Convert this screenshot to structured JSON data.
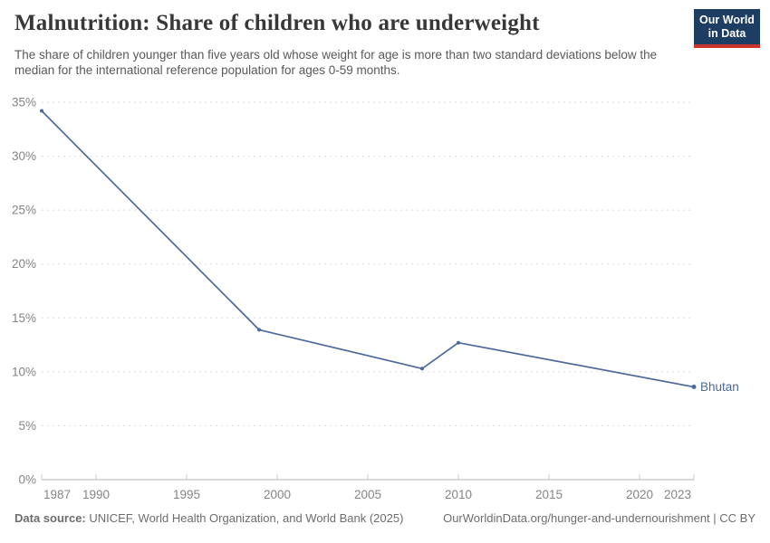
{
  "chart_data": {
    "type": "line",
    "title": "Malnutrition: Share of children who are underweight",
    "subtitle": "The share of children younger than five years old whose weight for age is more than two standard deviations below the median for the international reference population for ages 0-59 months.",
    "x_axis": {
      "min": 1987,
      "max": 2023,
      "ticks": [
        1987,
        1990,
        1995,
        2000,
        2005,
        2010,
        2015,
        2020,
        2023
      ]
    },
    "y_axis": {
      "min": 0,
      "max": 35,
      "unit": "%",
      "ticks": [
        0,
        5,
        10,
        15,
        20,
        25,
        30,
        35
      ]
    },
    "grid": "horizontal-dashed",
    "legend": "series-end-label",
    "series": [
      {
        "name": "Bhutan",
        "color": "#4C6A9C",
        "points": [
          [
            1987,
            34.2
          ],
          [
            1999,
            13.9
          ],
          [
            2008,
            10.3
          ],
          [
            2010,
            12.7
          ],
          [
            2023,
            8.6
          ]
        ]
      }
    ]
  },
  "logo": {
    "line1": "Our World",
    "line2": "in Data",
    "bg_color": "#1D3D63",
    "stripe_color": "#C8352C",
    "text_color": "#ffffff"
  },
  "footer": {
    "source_label": "Data source:",
    "source_text": " UNICEF, World Health Organization, and World Bank (2025)",
    "link_text": "OurWorldinData.org/hunger-and-undernourishment | CC BY"
  }
}
